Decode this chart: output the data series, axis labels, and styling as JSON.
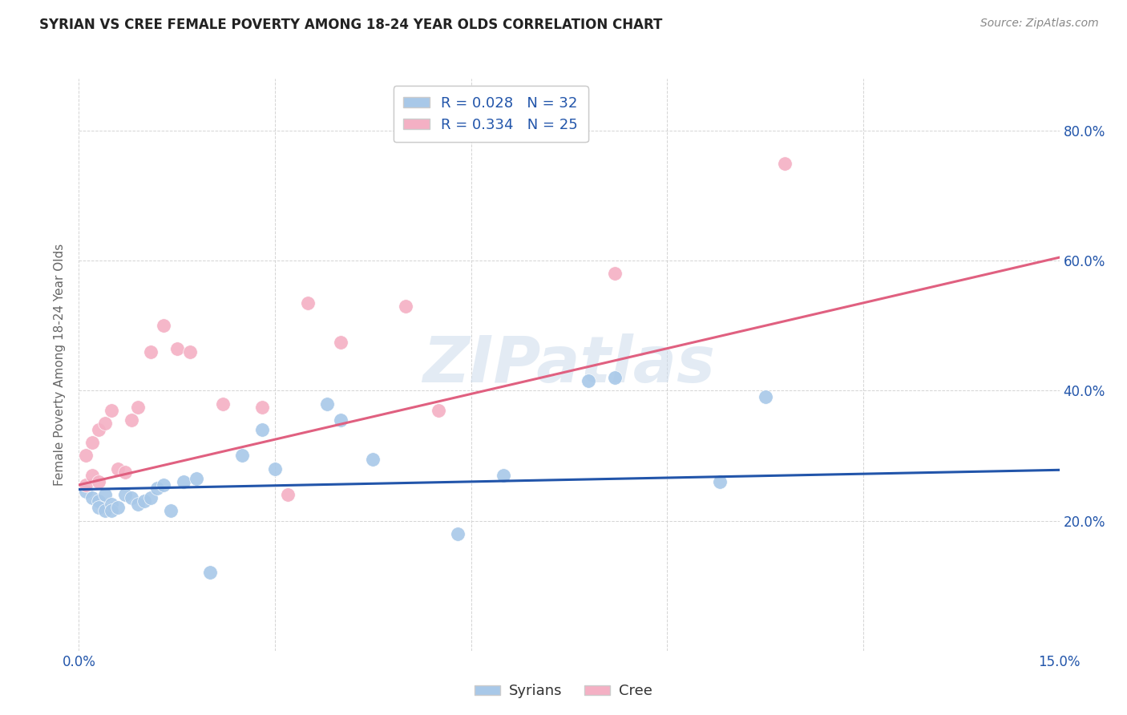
{
  "title": "SYRIAN VS CREE FEMALE POVERTY AMONG 18-24 YEAR OLDS CORRELATION CHART",
  "source": "Source: ZipAtlas.com",
  "ylabel": "Female Poverty Among 18-24 Year Olds",
  "xlim": [
    0.0,
    0.15
  ],
  "ylim": [
    0.0,
    0.88
  ],
  "ytick_positions": [
    0.2,
    0.4,
    0.6,
    0.8
  ],
  "ytick_labels": [
    "20.0%",
    "40.0%",
    "60.0%",
    "80.0%"
  ],
  "syrians_x": [
    0.001,
    0.002,
    0.003,
    0.003,
    0.004,
    0.004,
    0.005,
    0.005,
    0.006,
    0.007,
    0.008,
    0.009,
    0.01,
    0.011,
    0.012,
    0.013,
    0.014,
    0.016,
    0.018,
    0.02,
    0.025,
    0.028,
    0.03,
    0.038,
    0.04,
    0.045,
    0.058,
    0.065,
    0.078,
    0.082,
    0.098,
    0.105
  ],
  "syrians_y": [
    0.245,
    0.235,
    0.23,
    0.22,
    0.24,
    0.215,
    0.225,
    0.215,
    0.22,
    0.24,
    0.235,
    0.225,
    0.23,
    0.235,
    0.25,
    0.255,
    0.215,
    0.26,
    0.265,
    0.12,
    0.3,
    0.34,
    0.28,
    0.38,
    0.355,
    0.295,
    0.18,
    0.27,
    0.415,
    0.42,
    0.26,
    0.39
  ],
  "cree_x": [
    0.001,
    0.001,
    0.002,
    0.002,
    0.003,
    0.003,
    0.004,
    0.005,
    0.006,
    0.007,
    0.008,
    0.009,
    0.011,
    0.013,
    0.015,
    0.017,
    0.022,
    0.028,
    0.032,
    0.035,
    0.04,
    0.05,
    0.055,
    0.082,
    0.108
  ],
  "cree_y": [
    0.255,
    0.3,
    0.27,
    0.32,
    0.26,
    0.34,
    0.35,
    0.37,
    0.28,
    0.275,
    0.355,
    0.375,
    0.46,
    0.5,
    0.465,
    0.46,
    0.38,
    0.375,
    0.24,
    0.535,
    0.475,
    0.53,
    0.37,
    0.58,
    0.75
  ],
  "syrian_line_x": [
    0.0,
    0.15
  ],
  "syrian_line_y": [
    0.248,
    0.278
  ],
  "cree_line_x": [
    0.0,
    0.15
  ],
  "cree_line_y": [
    0.255,
    0.605
  ],
  "dot_color_syrians": "#a8c8e8",
  "dot_color_cree": "#f4b0c4",
  "line_color_syrians": "#2255aa",
  "line_color_cree": "#e06080",
  "watermark": "ZIPatlas",
  "background_color": "#ffffff",
  "grid_color": "#d0d0d0"
}
